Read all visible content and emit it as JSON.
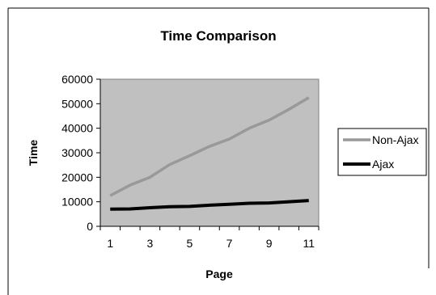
{
  "chart_data": {
    "type": "line",
    "title": "Time Comparison",
    "xlabel": "Page",
    "ylabel": "Time",
    "x": [
      1,
      2,
      3,
      4,
      5,
      6,
      7,
      8,
      9,
      10,
      11
    ],
    "x_tick_labels": [
      "1",
      "3",
      "5",
      "7",
      "9",
      "11"
    ],
    "x_tick_values": [
      1,
      3,
      5,
      7,
      9,
      11
    ],
    "ylim": [
      0,
      60000
    ],
    "y_tick_values": [
      0,
      10000,
      20000,
      30000,
      40000,
      50000,
      60000
    ],
    "y_tick_labels": [
      "0",
      "10000",
      "20000",
      "30000",
      "40000",
      "50000",
      "60000"
    ],
    "grid": false,
    "legend_position": "right",
    "plot_background_color": "#c0c0c0",
    "series": [
      {
        "name": "Non-Ajax",
        "color": "#999999",
        "values": [
          12500,
          16800,
          20000,
          25200,
          28800,
          32600,
          35600,
          40000,
          43300,
          47700,
          52500
        ]
      },
      {
        "name": "Ajax",
        "color": "#000000",
        "values": [
          7000,
          7100,
          7600,
          8000,
          8100,
          8600,
          9000,
          9400,
          9500,
          10000,
          10500
        ]
      }
    ]
  }
}
